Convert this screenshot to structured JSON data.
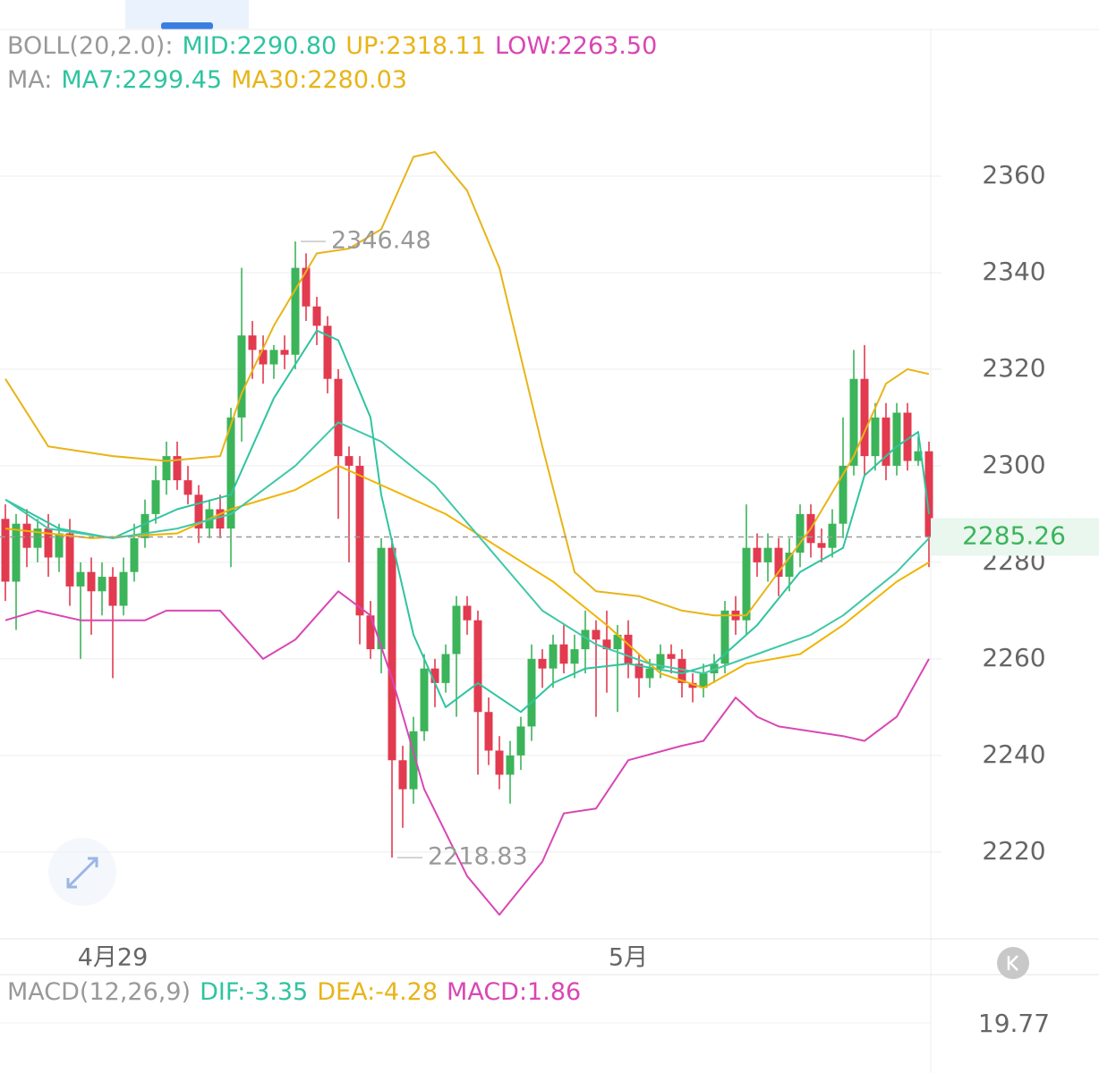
{
  "chart_data": {
    "type": "candlestick",
    "header_rows": [
      {
        "name": "BOLL(20,2.0):",
        "items": [
          {
            "text": "MID:2290.80",
            "color": "#2ec4a0"
          },
          {
            "text": "UP:2318.11",
            "color": "#e8b418"
          },
          {
            "text": "LOW:2263.50",
            "color": "#d946b4"
          }
        ]
      },
      {
        "name": "MA:",
        "items": [
          {
            "text": "MA7:2299.45",
            "color": "#2ec4a0"
          },
          {
            "text": "MA30:2280.03",
            "color": "#e8b418"
          }
        ]
      }
    ],
    "categories": [
      null,
      null,
      null,
      null,
      null,
      null,
      null,
      null,
      null,
      null,
      "4月29",
      null,
      null,
      null,
      null,
      null,
      null,
      null,
      null,
      null,
      null,
      null,
      null,
      null,
      null,
      null,
      null,
      null,
      null,
      null,
      null,
      null,
      null,
      null,
      null,
      null,
      null,
      null,
      null,
      null,
      null,
      null,
      null,
      null,
      null,
      null,
      null,
      null,
      null,
      null,
      null,
      null,
      null,
      null,
      null,
      null,
      null,
      null,
      "5月",
      null,
      null,
      null,
      null,
      null,
      null,
      null,
      null,
      null,
      null,
      null,
      null,
      null,
      null,
      null,
      null,
      null,
      null,
      null,
      null,
      null,
      null,
      null,
      null,
      null,
      null,
      null,
      null
    ],
    "open": [
      2289,
      2276,
      2288,
      2283,
      2287,
      2281,
      2286,
      2275,
      2278,
      2274,
      2277,
      2271,
      2278,
      2285,
      2290,
      2297,
      2302,
      2297,
      2294,
      2287,
      2291,
      2287,
      2310,
      2327,
      2324,
      2321,
      2324,
      2323,
      2341,
      2333,
      2329,
      2318,
      2302,
      2300,
      2269,
      2262,
      2283,
      2239,
      2233,
      2245,
      2258,
      2255,
      2261,
      2271,
      2268,
      2249,
      2241,
      2236,
      2240,
      2246,
      2260,
      2258,
      2263,
      2259,
      2262,
      2266,
      2264,
      2262,
      2265,
      2259,
      2256,
      2258,
      2261,
      2260,
      2255,
      2254,
      2257,
      2259,
      2270,
      2268,
      2283,
      2280,
      2283,
      2277,
      2282,
      2290,
      2284,
      2283,
      2288,
      2300,
      2318,
      2302,
      2310,
      2300,
      2311,
      2301,
      2303
    ],
    "high": [
      2292,
      2290,
      2291,
      2289,
      2290,
      2288,
      2289,
      2280,
      2281,
      2280,
      2279,
      2281,
      2288,
      2293,
      2300,
      2305,
      2305,
      2300,
      2296,
      2293,
      2294,
      2312,
      2341,
      2330,
      2327,
      2325,
      2327,
      2346.48,
      2344,
      2335,
      2331,
      2320,
      2304,
      2302,
      2272,
      2285,
      2285,
      2242,
      2248,
      2261,
      2260,
      2263,
      2273,
      2273,
      2270,
      2252,
      2244,
      2243,
      2248,
      2263,
      2262,
      2265,
      2267,
      2265,
      2270,
      2268,
      2270,
      2267,
      2268,
      2261,
      2260,
      2263,
      2263,
      2262,
      2257,
      2259,
      2261,
      2272,
      2273,
      2292,
      2286,
      2286,
      2285,
      2285,
      2292,
      2292,
      2287,
      2291,
      2310,
      2324,
      2325,
      2313,
      2313,
      2313,
      2313,
      2306,
      2305
    ],
    "low": [
      2272,
      2266,
      2279,
      2280,
      2277,
      2278,
      2271,
      2260,
      2265,
      2269,
      2256,
      2269,
      2276,
      2283,
      2288,
      2294,
      2295,
      2292,
      2284,
      2285,
      2285,
      2279,
      2305,
      2318,
      2317,
      2318,
      2320,
      2320,
      2330,
      2325,
      2315,
      2289,
      2280,
      2263,
      2260,
      2257,
      2218.83,
      2225,
      2230,
      2243,
      2250,
      2253,
      2248,
      2265,
      2236,
      2238,
      2233,
      2230,
      2237,
      2243,
      2254,
      2254,
      2257,
      2256,
      2257,
      2248,
      2253,
      2249,
      2256,
      2252,
      2254,
      2256,
      2257,
      2252,
      2251,
      2252,
      2255,
      2257,
      2265,
      2265,
      2277,
      2276,
      2273,
      2274,
      2279,
      2281,
      2280,
      2281,
      2285,
      2298,
      2298,
      2299,
      2297,
      2298,
      2299,
      2300,
      2279
    ],
    "close": [
      2276,
      2288,
      2283,
      2287,
      2281,
      2286,
      2275,
      2278,
      2274,
      2277,
      2271,
      2278,
      2285,
      2290,
      2297,
      2302,
      2297,
      2294,
      2287,
      2291,
      2287,
      2310,
      2327,
      2324,
      2321,
      2324,
      2323,
      2341,
      2333,
      2329,
      2318,
      2302,
      2300,
      2269,
      2262,
      2283,
      2239,
      2233,
      2245,
      2258,
      2255,
      2261,
      2271,
      2268,
      2249,
      2241,
      2236,
      2240,
      2246,
      2260,
      2258,
      2263,
      2259,
      2262,
      2266,
      2264,
      2262,
      2265,
      2259,
      2256,
      2258,
      2261,
      2260,
      2255,
      2254,
      2257,
      2259,
      2270,
      2268,
      2283,
      2280,
      2283,
      2277,
      2282,
      2290,
      2284,
      2283,
      2288,
      2300,
      2318,
      2302,
      2310,
      2300,
      2311,
      2301,
      2303,
      2285.26
    ],
    "up_color": "#3cb45a",
    "down_color": "#e23a4f",
    "series": [
      {
        "color": "#2ec4a0",
        "x": [
          0,
          5,
          10,
          16,
          21,
          25,
          29,
          31,
          34,
          35,
          38,
          41,
          44,
          48,
          51,
          54,
          58,
          63,
          66,
          70,
          74,
          78,
          80,
          83,
          85,
          86
        ],
        "values": [
          2293,
          2287,
          2285,
          2291,
          2294,
          2314,
          2328,
          2326,
          2310,
          2294,
          2265,
          2250,
          2255,
          2249,
          2255,
          2258,
          2259,
          2257,
          2259,
          2267,
          2278,
          2283,
          2298,
          2304,
          2307,
          2290
        ]
      },
      {
        "color": "#f0b400",
        "x": [
          0,
          8,
          16,
          21,
          27,
          31,
          35,
          41,
          46,
          51,
          56,
          61,
          65,
          69,
          74,
          78,
          83,
          86
        ],
        "values": [
          2287,
          2285,
          2286,
          2291,
          2295,
          2300,
          2296,
          2290,
          2283,
          2276,
          2267,
          2257,
          2254,
          2259,
          2261,
          2267,
          2276,
          2280
        ]
      },
      {
        "color": "#40c8a8",
        "x": [
          0,
          4,
          10,
          16,
          21,
          27,
          31,
          35,
          40,
          45,
          50,
          55,
          60,
          65,
          70,
          75,
          78,
          83,
          86
        ],
        "values": [
          2293,
          2287,
          2285,
          2287,
          2290,
          2300,
          2309,
          2305,
          2296,
          2283,
          2270,
          2263,
          2259,
          2257,
          2261,
          2265,
          2269,
          2278,
          2285
        ]
      },
      {
        "color": "#e8b418",
        "x": [
          0,
          4,
          10,
          15,
          20,
          22,
          25,
          29,
          32,
          35,
          38,
          40,
          43,
          46,
          50,
          53,
          55,
          59,
          63,
          66,
          69,
          72,
          75,
          79,
          82,
          84,
          86
        ],
        "values": [
          2318,
          2304,
          2302,
          2301,
          2302,
          2315,
          2329,
          2344,
          2345,
          2349,
          2364,
          2365,
          2357,
          2341,
          2304,
          2278,
          2274,
          2273,
          2270,
          2269,
          2269,
          2278,
          2287,
          2302,
          2317,
          2320,
          2319
        ]
      },
      {
        "color": "#d946b4",
        "x": [
          0,
          3,
          7,
          13,
          15,
          20,
          24,
          27,
          31,
          34,
          36,
          39,
          43,
          46,
          50,
          52,
          55,
          58,
          63,
          65,
          68,
          70,
          72,
          78,
          80,
          83,
          86
        ],
        "values": [
          2268,
          2270,
          2268,
          2268,
          2270,
          2270,
          2260,
          2264,
          2274,
          2269,
          2256,
          2233,
          2215,
          2207,
          2218,
          2228,
          2229,
          2239,
          2242,
          2243,
          2252,
          2248,
          2246,
          2244,
          2243,
          2248,
          2260
        ]
      }
    ],
    "ylim": [
      2202,
      2390
    ],
    "yticks": [
      2220,
      2240,
      2260,
      2280,
      2300,
      2320,
      2340,
      2360
    ],
    "grid": true,
    "macd": {
      "name": "MACD(12,26,9)",
      "items": [
        {
          "text": "DIF:-3.35",
          "color": "#2ec4a0"
        },
        {
          "text": "DEA:-4.28",
          "color": "#e8b418"
        },
        {
          "text": "MACD:1.86",
          "color": "#d946b4"
        }
      ],
      "axis_label": 19.77
    }
  }
}
